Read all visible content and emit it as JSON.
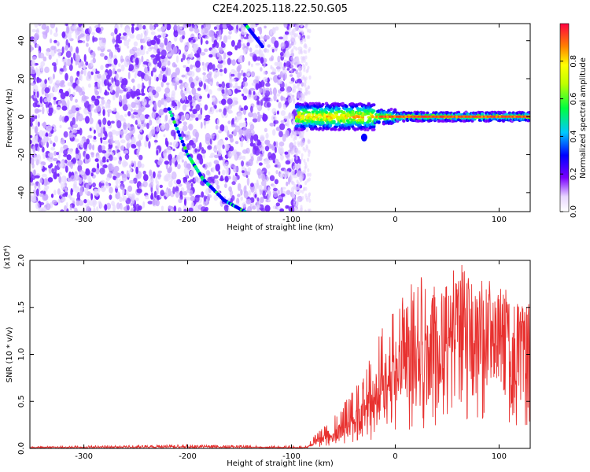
{
  "figure_title": "C2E4.2025.118.22.50.G05",
  "colors": {
    "speckle": "#7a2cff",
    "speckle_light": "#c9a8ff",
    "snr_line": "#e8312f"
  },
  "chart_data": [
    {
      "type": "heatmap",
      "title": "C2E4.2025.118.22.50.G05",
      "xlabel": "Height of straight line (km)",
      "ylabel": "Frequency (Hz)",
      "xlim": [
        -352,
        130
      ],
      "ylim": [
        -50,
        49
      ],
      "xticks": [
        -300,
        -200,
        -100,
        0,
        100
      ],
      "yticks": [
        -40,
        -20,
        0,
        20,
        40
      ],
      "colorbar": {
        "label": "Normalized spectral amplitude",
        "range": [
          0.0,
          1.0
        ],
        "ticks": [
          0.0,
          0.2,
          0.4,
          0.6,
          0.8
        ],
        "colormap": "white-purple-blue-cyan-green-yellow-orange-red"
      },
      "features": [
        {
          "name": "noise-region",
          "x_range": [
            -352,
            -88
          ],
          "y_range": [
            -50,
            49
          ],
          "amplitude": 0.15
        },
        {
          "name": "diagonal-streak-1",
          "points": [
            [
              -218,
              4
            ],
            [
              -200,
              -20
            ],
            [
              -185,
              -33
            ],
            [
              -165,
              -44
            ],
            [
              -145,
              -50
            ]
          ],
          "amplitude": 0.4
        },
        {
          "name": "diagonal-streak-2",
          "points": [
            [
              -145,
              49
            ],
            [
              -128,
              37
            ]
          ],
          "amplitude": 0.3
        },
        {
          "name": "signal-band",
          "x_range": [
            -95,
            130
          ],
          "center_hz": 0,
          "amplitude": 0.9
        },
        {
          "name": "dip-feature",
          "x": -30,
          "y": -11,
          "amplitude": 0.3
        }
      ]
    },
    {
      "type": "line",
      "xlabel": "Height of straight line (km)",
      "ylabel": "SNR (10 * v/v)",
      "y_multiplier": "(x10⁴)",
      "xlim": [
        -352,
        130
      ],
      "ylim": [
        0.0,
        2.0
      ],
      "xticks": [
        -300,
        -200,
        -100,
        0,
        100
      ],
      "yticks": [
        0.0,
        0.5,
        1.0,
        1.5,
        2.0
      ],
      "series": [
        {
          "envelope": {
            "x": [
              -352,
              -200,
              -120,
              -85,
              -70,
              -60,
              -45,
              -30,
              -15,
              0,
              15,
              30,
              45,
              60,
              75,
              90,
              105,
              130
            ],
            "y_mean": [
              0.01,
              0.015,
              0.01,
              0.01,
              0.1,
              0.15,
              0.2,
              0.35,
              0.6,
              0.8,
              0.95,
              1.05,
              1.15,
              1.2,
              1.15,
              1.1,
              1.1,
              1.05
            ],
            "y_max": [
              0.02,
              0.04,
              0.03,
              0.03,
              0.25,
              0.35,
              0.55,
              0.8,
              1.3,
              1.5,
              1.75,
              1.9,
              1.95,
              2.0,
              1.85,
              1.8,
              1.7,
              1.65
            ]
          }
        }
      ]
    }
  ]
}
